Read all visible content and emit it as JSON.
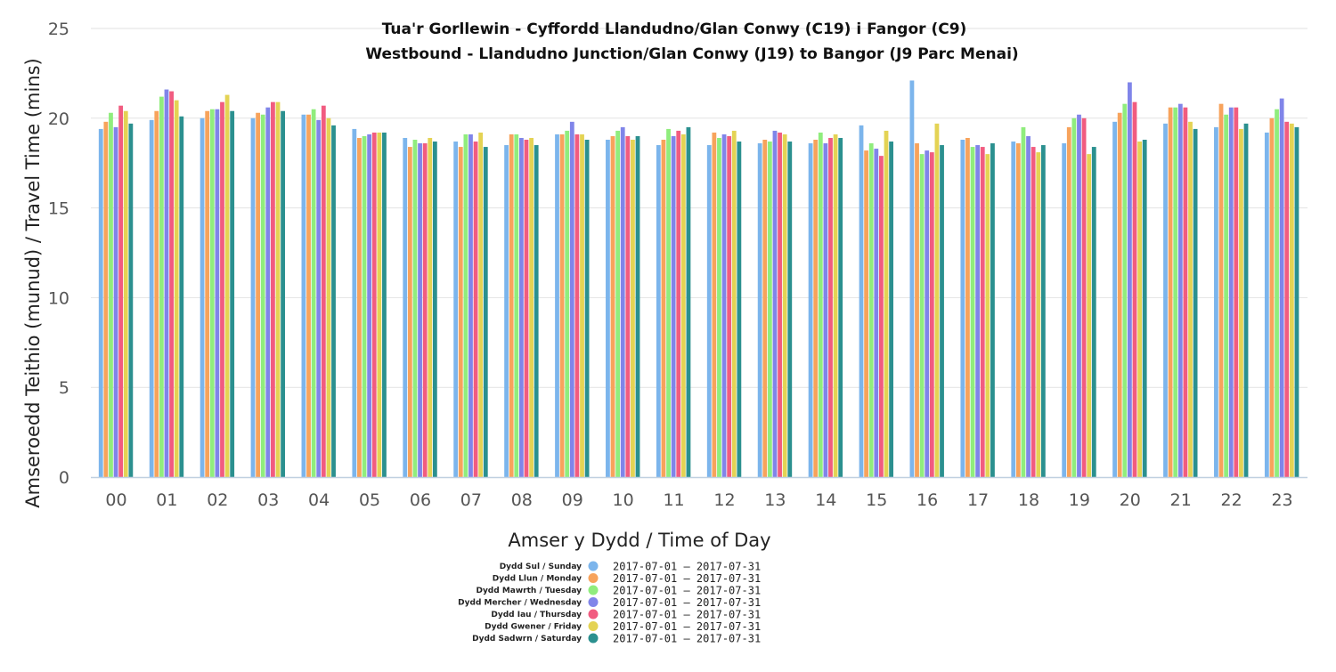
{
  "chart_data": {
    "type": "bar",
    "title": "Tua'r Gorllewin - Cyffordd Llandudno/Glan Conwy (C19) i Fangor (C9)",
    "subtitle": "Westbound - Llandudno Junction/Glan Conwy (J19) to Bangor (J9 Parc Menai)",
    "xlabel": "Amser y Dydd / Time of Day",
    "ylabel": "Amseroedd Teithio (munud) / Travel Time (mins)",
    "ylim": [
      0,
      25
    ],
    "yticks": [
      "0",
      "5",
      "10",
      "15",
      "20",
      "25"
    ],
    "grid": true,
    "legend_position": "bottom",
    "categories": [
      "00",
      "01",
      "02",
      "03",
      "04",
      "05",
      "06",
      "07",
      "08",
      "09",
      "10",
      "11",
      "12",
      "13",
      "14",
      "15",
      "16",
      "17",
      "18",
      "19",
      "20",
      "21",
      "22",
      "23"
    ],
    "series": [
      {
        "name": "Dydd Sul / Sunday",
        "range": "2017-07-01 – 2017-07-31",
        "color": "#7cb5ec",
        "values": [
          19.4,
          19.9,
          20.0,
          20.0,
          20.2,
          19.4,
          18.9,
          18.7,
          18.5,
          19.1,
          18.8,
          18.5,
          18.5,
          18.6,
          18.6,
          19.6,
          22.1,
          18.8,
          18.7,
          18.6,
          19.8,
          19.7,
          19.5,
          19.2
        ]
      },
      {
        "name": "Dydd Llun / Monday",
        "range": "2017-07-01 – 2017-07-31",
        "color": "#f7a35c",
        "values": [
          19.8,
          20.4,
          20.4,
          20.3,
          20.2,
          18.9,
          18.4,
          18.4,
          19.1,
          19.1,
          19.0,
          18.8,
          19.2,
          18.8,
          18.8,
          18.2,
          18.6,
          18.9,
          18.6,
          19.5,
          20.3,
          20.6,
          20.8,
          20.0
        ]
      },
      {
        "name": "Dydd Mawrth / Tuesday",
        "range": "2017-07-01 – 2017-07-31",
        "color": "#90ed7d",
        "values": [
          20.3,
          21.2,
          20.5,
          20.2,
          20.5,
          19.0,
          18.8,
          19.1,
          19.1,
          19.3,
          19.3,
          19.4,
          18.9,
          18.7,
          19.2,
          18.6,
          18.0,
          18.4,
          19.5,
          20.0,
          20.8,
          20.6,
          20.2,
          20.5
        ]
      },
      {
        "name": "Dydd Mercher / Wednesday",
        "range": "2017-07-01 – 2017-07-31",
        "color": "#8085e9",
        "values": [
          19.5,
          21.6,
          20.5,
          20.6,
          19.9,
          19.1,
          18.6,
          19.1,
          18.9,
          19.8,
          19.5,
          19.0,
          19.1,
          19.3,
          18.6,
          18.3,
          18.2,
          18.5,
          19.0,
          20.2,
          22.0,
          20.8,
          20.6,
          21.1
        ]
      },
      {
        "name": "Dydd Iau / Thursday",
        "range": "2017-07-01 – 2017-07-31",
        "color": "#f15c80",
        "values": [
          20.7,
          21.5,
          20.9,
          20.9,
          20.7,
          19.2,
          18.6,
          18.7,
          18.8,
          19.1,
          19.0,
          19.3,
          19.0,
          19.2,
          18.9,
          17.9,
          18.1,
          18.4,
          18.4,
          20.0,
          20.9,
          20.6,
          20.6,
          19.8
        ]
      },
      {
        "name": "Dydd Gwener / Friday",
        "range": "2017-07-01 – 2017-07-31",
        "color": "#e4d354",
        "values": [
          20.4,
          21.0,
          21.3,
          20.9,
          20.0,
          19.2,
          18.9,
          19.2,
          18.9,
          19.1,
          18.8,
          19.1,
          19.3,
          19.1,
          19.1,
          19.3,
          19.7,
          18.0,
          18.1,
          18.0,
          18.7,
          19.8,
          19.4,
          19.7
        ]
      },
      {
        "name": "Dydd Sadwrn / Saturday",
        "range": "2017-07-01 – 2017-07-31",
        "color": "#2b908f",
        "values": [
          19.7,
          20.1,
          20.4,
          20.4,
          19.6,
          19.2,
          18.7,
          18.4,
          18.5,
          18.8,
          19.0,
          19.5,
          18.7,
          18.7,
          18.9,
          18.7,
          18.5,
          18.6,
          18.5,
          18.4,
          18.8,
          19.4,
          19.7,
          19.5
        ]
      }
    ]
  }
}
